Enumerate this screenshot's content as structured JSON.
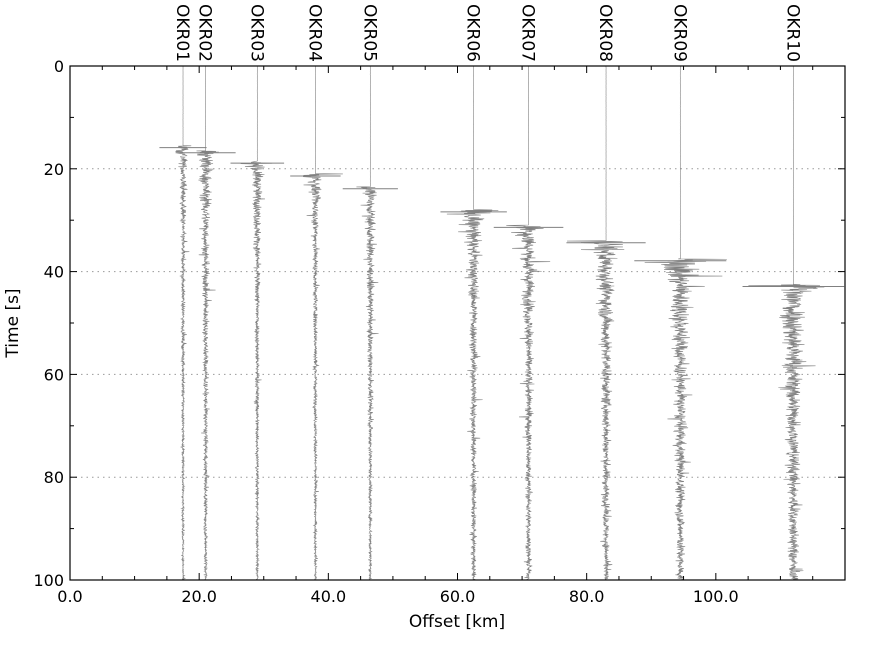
{
  "chart_data": {
    "type": "seismic_record_section",
    "xlabel": "Offset [km]",
    "ylabel": "Time [s]",
    "xlim": [
      0,
      120
    ],
    "ylim": [
      0,
      100
    ],
    "y_inverted": true,
    "x_ticks": [
      0,
      20,
      40,
      60,
      80,
      100
    ],
    "x_tick_labels": [
      "0.0",
      "20.0",
      "40.0",
      "60.0",
      "80.0",
      "100.0"
    ],
    "y_ticks": [
      0,
      20,
      40,
      60,
      80,
      100
    ],
    "y_tick_labels": [
      "0",
      "20",
      "40",
      "60",
      "80",
      "100"
    ],
    "grid": "horizontal dotted",
    "trace_color": "#808080",
    "stations": [
      {
        "name": "OKR01",
        "offset": 17.5,
        "onset": 15.5,
        "amplitude": 1.2
      },
      {
        "name": "OKR02",
        "offset": 21.0,
        "onset": 16.5,
        "amplitude": 2.0
      },
      {
        "name": "OKR03",
        "offset": 29.0,
        "onset": 18.5,
        "amplitude": 1.6
      },
      {
        "name": "OKR04",
        "offset": 38.0,
        "onset": 21.0,
        "amplitude": 1.4
      },
      {
        "name": "OKR05",
        "offset": 46.5,
        "onset": 23.5,
        "amplitude": 1.7
      },
      {
        "name": "OKR06",
        "offset": 62.5,
        "onset": 28.0,
        "amplitude": 2.4
      },
      {
        "name": "OKR07",
        "offset": 71.0,
        "onset": 31.0,
        "amplitude": 2.6
      },
      {
        "name": "OKR08",
        "offset": 83.0,
        "onset": 34.0,
        "amplitude": 3.2
      },
      {
        "name": "OKR09",
        "offset": 94.5,
        "onset": 37.5,
        "amplitude": 4.0
      },
      {
        "name": "OKR10",
        "offset": 112.0,
        "onset": 42.5,
        "amplitude": 4.6
      }
    ]
  }
}
